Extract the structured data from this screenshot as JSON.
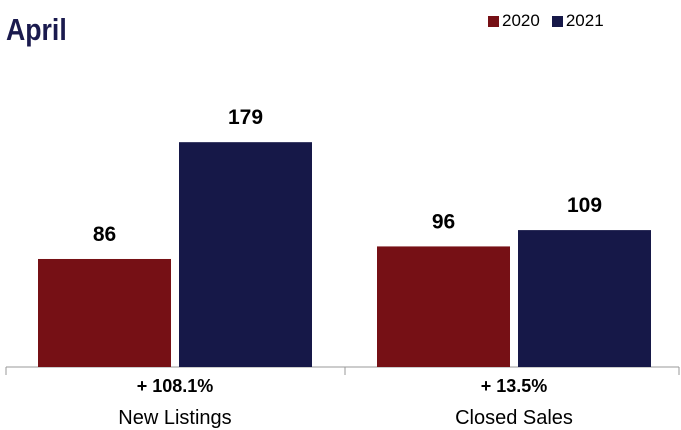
{
  "chart_data": {
    "type": "bar",
    "title": "April",
    "categories": [
      "New Listings",
      "Closed Sales"
    ],
    "category_changes": [
      "+ 108.1%",
      "+ 13.5%"
    ],
    "series": [
      {
        "name": "2020",
        "values": [
          86,
          96
        ],
        "color": "#761015"
      },
      {
        "name": "2021",
        "values": [
          179,
          109
        ],
        "color": "#161848"
      }
    ],
    "ylim": [
      0,
      200
    ],
    "grid": false,
    "legend_position": "top-right"
  }
}
